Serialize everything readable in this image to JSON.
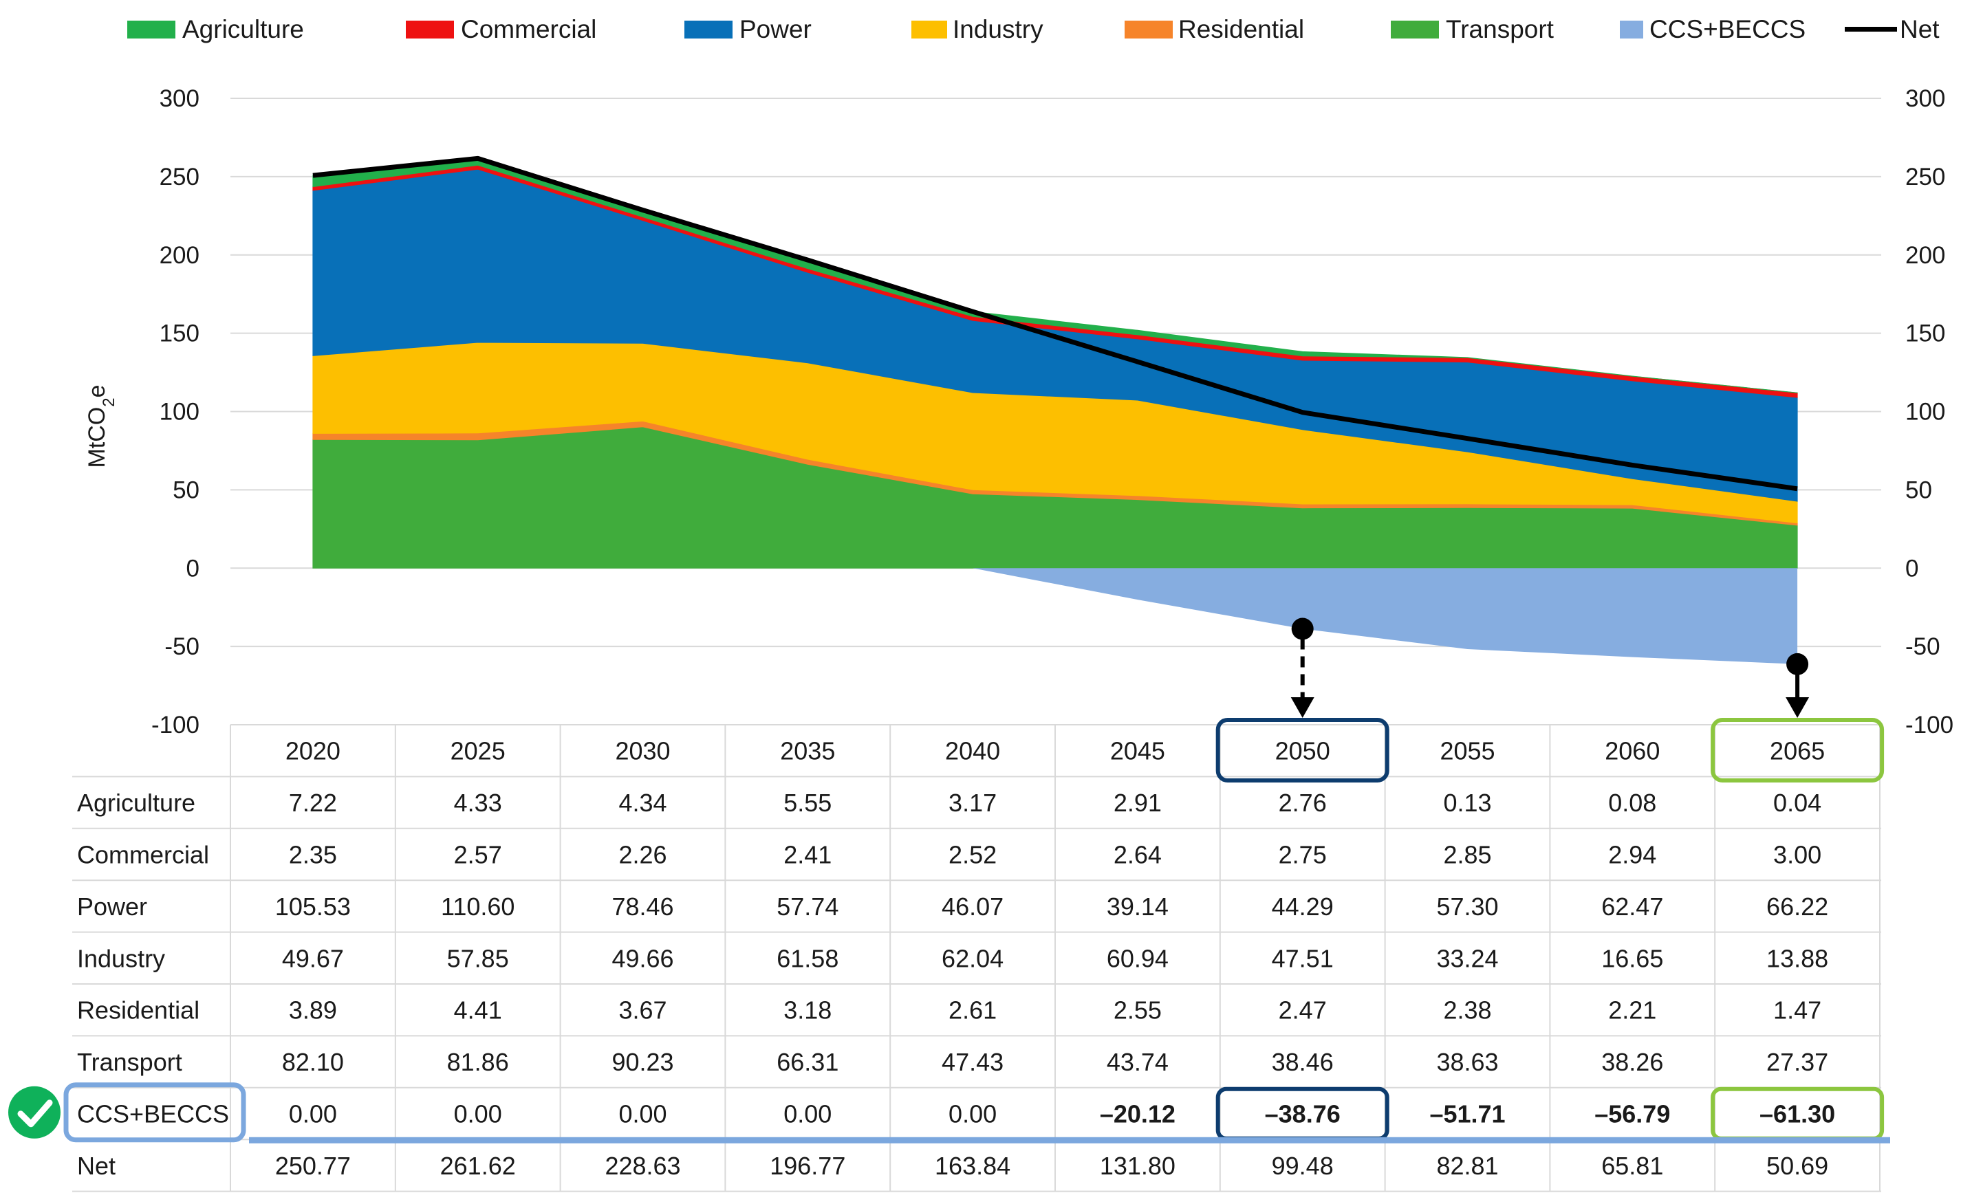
{
  "chart_data": {
    "type": "area",
    "ylabel": "MtCO₂e",
    "ylim": [
      -100,
      300
    ],
    "yticks": [
      300,
      250,
      200,
      150,
      100,
      50,
      0,
      -50,
      -100
    ],
    "x": [
      "2020",
      "2025",
      "2030",
      "2035",
      "2040",
      "2045",
      "2050",
      "2055",
      "2060",
      "2065"
    ],
    "series": [
      {
        "name": "Agriculture",
        "color": "#22b04b",
        "values": [
          7.22,
          4.33,
          4.34,
          5.55,
          3.17,
          2.91,
          2.76,
          0.13,
          0.08,
          0.04
        ]
      },
      {
        "name": "Commercial",
        "color": "#ee1111",
        "values": [
          2.35,
          2.57,
          2.26,
          2.41,
          2.52,
          2.64,
          2.75,
          2.85,
          2.94,
          3.0
        ]
      },
      {
        "name": "Power",
        "color": "#0870b8",
        "values": [
          105.53,
          110.6,
          78.46,
          57.74,
          46.07,
          39.14,
          44.29,
          57.3,
          62.47,
          66.22
        ]
      },
      {
        "name": "Industry",
        "color": "#fdbf00",
        "values": [
          49.67,
          57.85,
          49.66,
          61.58,
          62.04,
          60.94,
          47.51,
          33.24,
          16.65,
          13.88
        ]
      },
      {
        "name": "Residential",
        "color": "#f6842a",
        "values": [
          3.89,
          4.41,
          3.67,
          3.18,
          2.61,
          2.55,
          2.47,
          2.38,
          2.21,
          1.47
        ]
      },
      {
        "name": "Transport",
        "color": "#40ac3c",
        "values": [
          82.1,
          81.86,
          90.23,
          66.31,
          47.43,
          43.74,
          38.46,
          38.63,
          38.26,
          27.37
        ]
      },
      {
        "name": "CCS+BECCS",
        "color": "#86ade0",
        "values": [
          0.0,
          0.0,
          0.0,
          0.0,
          0.0,
          -20.12,
          -38.76,
          -51.71,
          -56.79,
          -61.3
        ]
      }
    ],
    "net": {
      "name": "Net",
      "color": "#000000",
      "values": [
        250.77,
        261.62,
        228.63,
        196.77,
        163.84,
        131.8,
        99.48,
        82.81,
        65.81,
        50.69
      ]
    },
    "legend": [
      "Agriculture",
      "Commercial",
      "Power",
      "Industry",
      "Residential",
      "Transport",
      "CCS+BECCS",
      "Net"
    ],
    "table": {
      "rows": [
        {
          "label": "Agriculture",
          "cells": [
            "7.22",
            "4.33",
            "4.34",
            "5.55",
            "3.17",
            "2.91",
            "2.76",
            "0.13",
            "0.08",
            "0.04"
          ]
        },
        {
          "label": "Commercial",
          "cells": [
            "2.35",
            "2.57",
            "2.26",
            "2.41",
            "2.52",
            "2.64",
            "2.75",
            "2.85",
            "2.94",
            "3.00"
          ]
        },
        {
          "label": "Power",
          "cells": [
            "105.53",
            "110.60",
            "78.46",
            "57.74",
            "46.07",
            "39.14",
            "44.29",
            "57.30",
            "62.47",
            "66.22"
          ]
        },
        {
          "label": "Industry",
          "cells": [
            "49.67",
            "57.85",
            "49.66",
            "61.58",
            "62.04",
            "60.94",
            "47.51",
            "33.24",
            "16.65",
            "13.88"
          ]
        },
        {
          "label": "Residential",
          "cells": [
            "3.89",
            "4.41",
            "3.67",
            "3.18",
            "2.61",
            "2.55",
            "2.47",
            "2.38",
            "2.21",
            "1.47"
          ]
        },
        {
          "label": "Transport",
          "cells": [
            "82.10",
            "81.86",
            "90.23",
            "66.31",
            "47.43",
            "43.74",
            "38.46",
            "38.63",
            "38.26",
            "27.37"
          ]
        },
        {
          "label": "CCS+BECCS",
          "cells": [
            "0.00",
            "0.00",
            "0.00",
            "0.00",
            "0.00",
            "–20.12",
            "–38.76",
            "–51.71",
            "–56.79",
            "–61.30"
          ]
        },
        {
          "label": "Net",
          "cells": [
            "250.77",
            "261.62",
            "228.63",
            "196.77",
            "163.84",
            "131.80",
            "99.48",
            "82.81",
            "65.81",
            "50.69"
          ]
        }
      ]
    },
    "annotations": [
      {
        "type": "highlight",
        "year": "2050",
        "color": "#0d3c6e",
        "value": -38.76,
        "arrow": "dashed"
      },
      {
        "type": "highlight",
        "year": "2065",
        "color": "#8cc63f",
        "value": -61.3,
        "arrow": "solid"
      },
      {
        "type": "highlight",
        "row": "CCS+BECCS",
        "color": "#7ba7de",
        "icon": "check-circle-icon",
        "icon_color": "#0fb15a"
      }
    ]
  }
}
